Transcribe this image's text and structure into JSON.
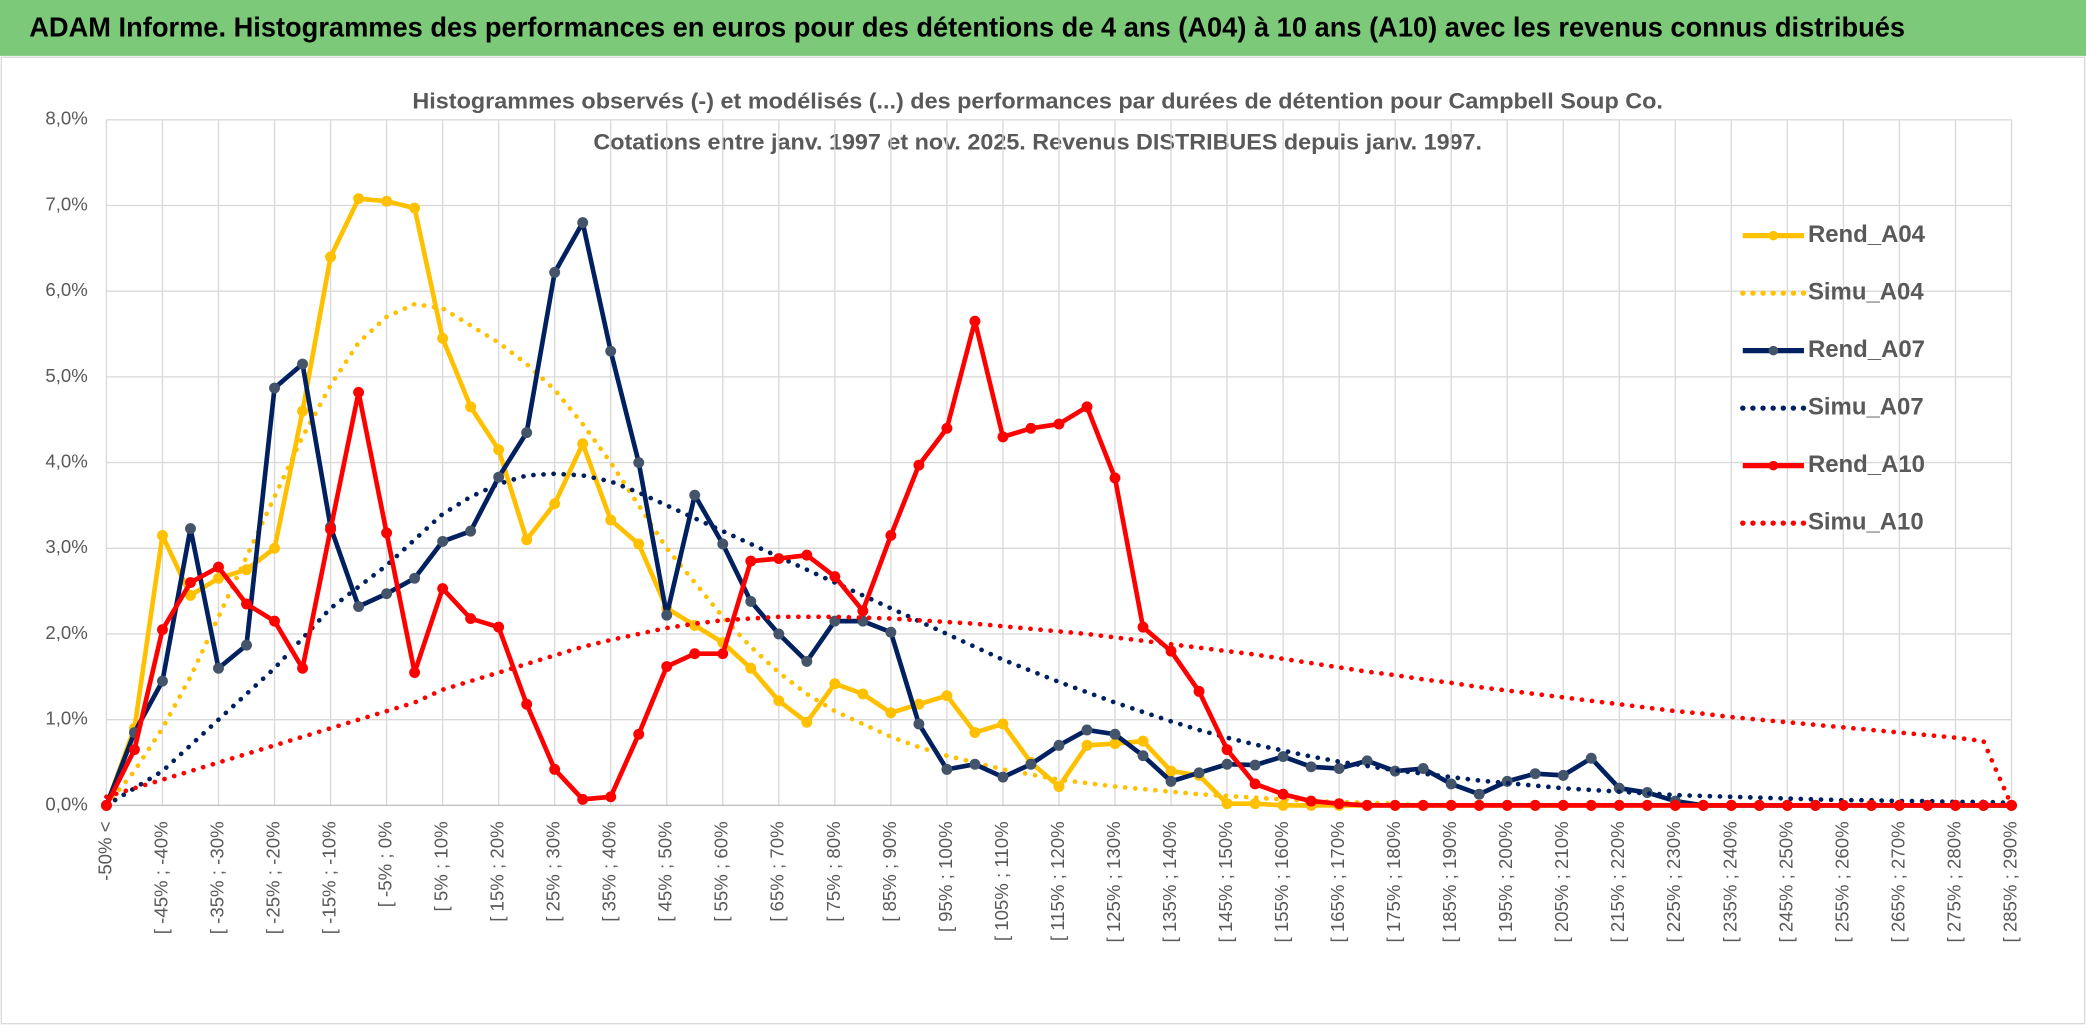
{
  "header": {
    "title": "ADAM Informe. Histogrammes des performances en euros pour des détentions de 4 ans (A04) à 10 ans (A10) avec les revenus connus distribués"
  },
  "chart_data": {
    "type": "line",
    "title": "Histogrammes observés (-) et modélisés (...) des performances par durées de détention pour Campbell Soup Co.",
    "subtitle": "Cotations entre janv. 1997 et nov. 2025. Revenus DISTRIBUES depuis janv. 1997.",
    "categories": [
      "-50% <",
      null,
      "[ -45% ; -40%",
      null,
      "[ -35% ; -30%",
      null,
      "[ -25% ; -20%",
      null,
      "[ -15% ; -10%",
      null,
      "[ -5% ; 0%",
      null,
      "[ 5% ; 10%",
      null,
      "[ 15% ; 20%",
      null,
      "[ 25% ; 30%",
      null,
      "[ 35% ; 40%",
      null,
      "[ 45% ; 50%",
      null,
      "[ 55% ; 60%",
      null,
      "[ 65% ; 70%",
      null,
      "[ 75% ; 80%",
      null,
      "[ 85% ; 90%",
      null,
      "[ 95% ; 100%",
      null,
      "[ 105% ; 110%",
      null,
      "[ 115% ; 120%",
      null,
      "[ 125% ; 130%",
      null,
      "[ 135% ; 140%",
      null,
      "[ 145% ; 150%",
      null,
      "[ 155% ; 160%",
      null,
      "[ 165% ; 170%",
      null,
      "[ 175% ; 180%",
      null,
      "[ 185% ; 190%",
      null,
      "[ 195% ; 200%",
      null,
      "[ 205% ; 210%",
      null,
      "[ 215% ; 220%",
      null,
      "[ 225% ; 230%",
      null,
      "[ 235% ; 240%",
      null,
      "[ 245% ; 250%",
      null,
      "[ 255% ; 260%",
      null,
      "[ 265% ; 270%",
      null,
      "[ 275% ; 280%",
      null,
      "[ 285% ; 290%"
    ],
    "series": [
      {
        "name": "Rend_A04",
        "color": "#ffc000",
        "marker_color": "#ffc000",
        "style": "solid",
        "markers": true,
        "values": [
          0,
          0.9,
          3.15,
          2.45,
          2.65,
          2.75,
          3.0,
          4.6,
          6.4,
          7.08,
          7.05,
          6.97,
          5.45,
          4.65,
          4.15,
          3.1,
          3.52,
          4.22,
          3.33,
          3.05,
          2.3,
          2.1,
          1.9,
          1.6,
          1.22,
          0.97,
          1.42,
          1.3,
          1.08,
          1.18,
          1.28,
          0.85,
          0.95,
          0.5,
          0.22,
          0.7,
          0.72,
          0.75,
          0.4,
          0.35,
          0.02,
          0.02,
          0,
          0,
          0,
          0,
          0,
          0,
          0,
          0,
          0,
          0,
          0,
          0,
          0,
          0,
          0,
          0,
          0,
          0,
          0,
          0,
          0,
          0,
          0,
          0,
          0,
          0,
          0
        ]
      },
      {
        "name": "Simu_A04",
        "color": "#ffc000",
        "style": "dotted",
        "markers": false,
        "values": [
          0,
          0.4,
          0.9,
          1.5,
          2.2,
          2.9,
          3.6,
          4.3,
          4.9,
          5.4,
          5.7,
          5.85,
          5.8,
          5.6,
          5.4,
          5.15,
          4.85,
          4.45,
          4.0,
          3.5,
          3.0,
          2.6,
          2.2,
          1.85,
          1.55,
          1.3,
          1.1,
          0.95,
          0.8,
          0.68,
          0.58,
          0.5,
          0.42,
          0.36,
          0.3,
          0.26,
          0.22,
          0.19,
          0.16,
          0.13,
          0.11,
          0.09,
          0.07,
          0.05,
          0.04,
          0.03,
          0.02,
          0,
          0,
          0,
          0,
          0,
          0,
          0,
          0,
          0,
          0,
          0,
          0,
          0,
          0,
          0,
          0,
          0,
          0,
          0,
          0,
          0,
          0
        ]
      },
      {
        "name": "Rend_A07",
        "color": "#002060",
        "marker_color": "#44546a",
        "style": "solid",
        "markers": true,
        "values": [
          0,
          0.85,
          1.45,
          3.23,
          1.6,
          1.87,
          4.87,
          5.15,
          3.25,
          2.32,
          2.47,
          2.65,
          3.08,
          3.2,
          3.83,
          4.35,
          6.22,
          6.8,
          5.3,
          4.0,
          2.22,
          3.62,
          3.05,
          2.38,
          2.0,
          1.68,
          2.15,
          2.15,
          2.02,
          0.95,
          0.42,
          0.48,
          0.33,
          0.48,
          0.7,
          0.88,
          0.83,
          0.58,
          0.28,
          0.38,
          0.48,
          0.47,
          0.57,
          0.45,
          0.43,
          0.52,
          0.4,
          0.43,
          0.25,
          0.13,
          0.28,
          0.37,
          0.35,
          0.55,
          0.2,
          0.15,
          0.05,
          0,
          0,
          0,
          0,
          0,
          0,
          0,
          0,
          0,
          0,
          0,
          0
        ]
      },
      {
        "name": "Simu_A07",
        "color": "#002060",
        "style": "dotted",
        "markers": false,
        "values": [
          0,
          0.2,
          0.4,
          0.7,
          1.0,
          1.3,
          1.6,
          1.95,
          2.3,
          2.55,
          2.8,
          3.1,
          3.4,
          3.6,
          3.75,
          3.85,
          3.87,
          3.85,
          3.78,
          3.65,
          3.5,
          3.35,
          3.2,
          3.05,
          2.9,
          2.75,
          2.6,
          2.45,
          2.3,
          2.15,
          2.0,
          1.85,
          1.7,
          1.57,
          1.44,
          1.32,
          1.2,
          1.09,
          0.98,
          0.88,
          0.79,
          0.71,
          0.64,
          0.57,
          0.51,
          0.46,
          0.41,
          0.37,
          0.33,
          0.29,
          0.26,
          0.23,
          0.2,
          0.18,
          0.16,
          0.14,
          0.12,
          0.11,
          0.1,
          0.09,
          0.08,
          0.07,
          0.06,
          0.06,
          0.05,
          0.05,
          0.04,
          0.04,
          0.03
        ]
      },
      {
        "name": "Rend_A10",
        "color": "#ff0000",
        "marker_color": "#ff0000",
        "style": "solid",
        "markers": true,
        "values": [
          0,
          0.65,
          2.05,
          2.6,
          2.78,
          2.35,
          2.15,
          1.6,
          3.22,
          4.82,
          3.18,
          1.55,
          2.53,
          2.18,
          2.08,
          1.18,
          0.42,
          0.07,
          0.1,
          0.83,
          1.62,
          1.77,
          1.77,
          2.85,
          2.88,
          2.92,
          2.67,
          2.27,
          3.15,
          3.97,
          4.4,
          5.65,
          4.3,
          4.4,
          4.45,
          4.65,
          3.82,
          2.08,
          1.8,
          1.33,
          0.65,
          0.25,
          0.13,
          0.05,
          0.02,
          0,
          0,
          0,
          0,
          0,
          0,
          0,
          0,
          0,
          0,
          0,
          0,
          0,
          0,
          0,
          0,
          0,
          0,
          0,
          0,
          0,
          0,
          0,
          0
        ]
      },
      {
        "name": "Simu_A10",
        "color": "#ff0000",
        "style": "dotted",
        "markers": false,
        "values": [
          0.1,
          0.2,
          0.3,
          0.4,
          0.5,
          0.6,
          0.7,
          0.8,
          0.9,
          1.0,
          1.1,
          1.2,
          1.35,
          1.45,
          1.55,
          1.65,
          1.75,
          1.85,
          1.93,
          2.0,
          2.07,
          2.12,
          2.16,
          2.18,
          2.2,
          2.2,
          2.2,
          2.19,
          2.18,
          2.16,
          2.14,
          2.12,
          2.09,
          2.06,
          2.03,
          2.0,
          1.96,
          1.92,
          1.88,
          1.84,
          1.8,
          1.76,
          1.71,
          1.66,
          1.61,
          1.56,
          1.52,
          1.47,
          1.43,
          1.38,
          1.34,
          1.3,
          1.26,
          1.22,
          1.18,
          1.14,
          1.1,
          1.07,
          1.03,
          1.0,
          0.97,
          0.94,
          0.91,
          0.88,
          0.85,
          0.82,
          0.79,
          0.75,
          0
        ]
      }
    ],
    "ylim": [
      0,
      8
    ],
    "yticks": [
      {
        "value": 0,
        "label": "0,0%"
      },
      {
        "value": 1,
        "label": "1,0%"
      },
      {
        "value": 2,
        "label": "2,0%"
      },
      {
        "value": 3,
        "label": "3,0%"
      },
      {
        "value": 4,
        "label": "4,0%"
      },
      {
        "value": 5,
        "label": "5,0%"
      },
      {
        "value": 6,
        "label": "6,0%"
      },
      {
        "value": 7,
        "label": "7,0%"
      },
      {
        "value": 8,
        "label": "8,0%"
      }
    ],
    "grid": true,
    "legend": "right"
  }
}
